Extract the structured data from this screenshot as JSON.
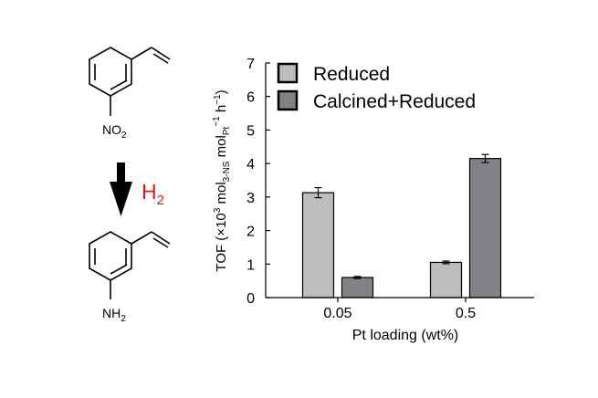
{
  "scheme": {
    "reactant_group": "NO",
    "reactant_sub": "2",
    "reagent": "H",
    "reagent_sub": "2",
    "product_group": "NH",
    "product_sub": "2",
    "reagent_color": "#e8141b"
  },
  "chart_data": {
    "type": "bar",
    "categories": [
      "0.05",
      "0.5"
    ],
    "series": [
      {
        "name": "Reduced",
        "values": [
          3.13,
          1.05
        ],
        "errors": [
          0.15,
          0.04
        ],
        "color": "#bdbdbf"
      },
      {
        "name": "Calcined+Reduced",
        "values": [
          0.6,
          4.15
        ],
        "errors": [
          0.03,
          0.12
        ],
        "color": "#818285"
      }
    ],
    "xlabel": "Pt loading (wt%)",
    "ylabel": {
      "prefix": "TOF (×10",
      "exp1": "3",
      "mid1": " mol",
      "sub1": "3-NS",
      "mid2": " mol",
      "sub2": "Pt",
      "exp2": "−1",
      "suffix": " h",
      "exp3": "−1",
      "end": ")"
    },
    "ylim": [
      0,
      7
    ],
    "yticks": [
      "0",
      "1",
      "2",
      "3",
      "4",
      "5",
      "6",
      "7"
    ],
    "legend_position": "top-left",
    "grid": false
  }
}
